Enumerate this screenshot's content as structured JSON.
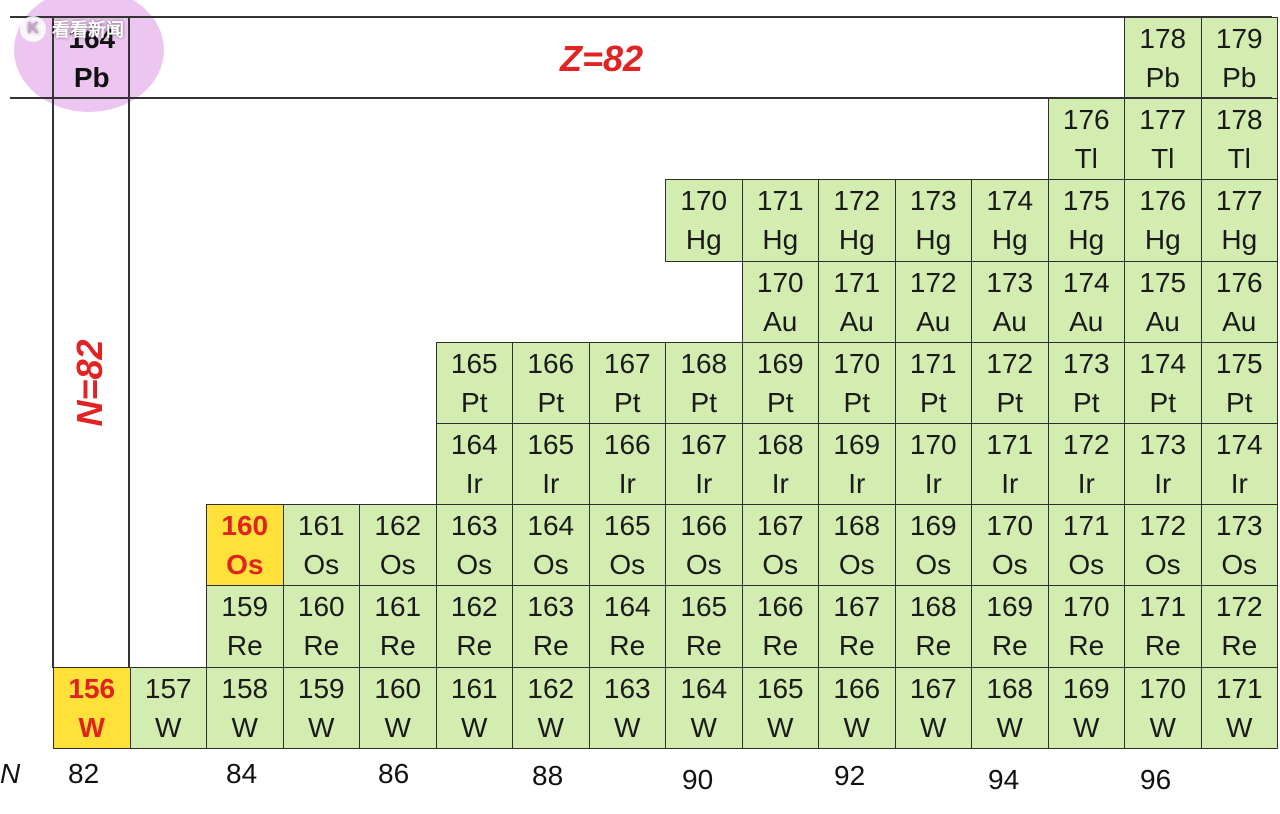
{
  "watermark": {
    "text": "看看新闻",
    "logo_glyph": "K"
  },
  "axis": {
    "n_label": "N",
    "ticks": [
      "82",
      "84",
      "86",
      "88",
      "90",
      "92",
      "94",
      "96"
    ]
  },
  "magic": {
    "z_label": "Z=82",
    "n_label": "N=82"
  },
  "colors": {
    "cell": "#d3ecb0",
    "highlight": "#ffe13a",
    "highlight_text": "#e0231e",
    "magic_text": "#e22323",
    "pb_circle": "#e2a8e8"
  },
  "chart_data": {
    "type": "table",
    "columns_n": [
      82,
      83,
      84,
      85,
      86,
      87,
      88,
      89,
      90,
      91,
      92,
      93,
      94,
      95,
      96,
      97
    ],
    "rows": [
      {
        "element": "Pb",
        "Z": 82,
        "cells": [
          {
            "N": 82,
            "mass": "164",
            "symbol": "Pb",
            "style": "pb"
          },
          {
            "N": 96,
            "mass": "178",
            "symbol": "Pb"
          },
          {
            "N": 97,
            "mass": "179",
            "symbol": "Pb"
          }
        ]
      },
      {
        "element": "Tl",
        "Z": 81,
        "cells": [
          {
            "N": 95,
            "mass": "176",
            "symbol": "Tl"
          },
          {
            "N": 96,
            "mass": "177",
            "symbol": "Tl"
          },
          {
            "N": 97,
            "mass": "178",
            "symbol": "Tl"
          }
        ]
      },
      {
        "element": "Hg",
        "Z": 80,
        "cells": [
          {
            "N": 90,
            "mass": "170",
            "symbol": "Hg"
          },
          {
            "N": 91,
            "mass": "171",
            "symbol": "Hg"
          },
          {
            "N": 92,
            "mass": "172",
            "symbol": "Hg"
          },
          {
            "N": 93,
            "mass": "173",
            "symbol": "Hg"
          },
          {
            "N": 94,
            "mass": "174",
            "symbol": "Hg"
          },
          {
            "N": 95,
            "mass": "175",
            "symbol": "Hg"
          },
          {
            "N": 96,
            "mass": "176",
            "symbol": "Hg"
          },
          {
            "N": 97,
            "mass": "177",
            "symbol": "Hg"
          }
        ]
      },
      {
        "element": "Au",
        "Z": 79,
        "cells": [
          {
            "N": 91,
            "mass": "170",
            "symbol": "Au"
          },
          {
            "N": 92,
            "mass": "171",
            "symbol": "Au"
          },
          {
            "N": 93,
            "mass": "172",
            "symbol": "Au"
          },
          {
            "N": 94,
            "mass": "173",
            "symbol": "Au"
          },
          {
            "N": 95,
            "mass": "174",
            "symbol": "Au"
          },
          {
            "N": 96,
            "mass": "175",
            "symbol": "Au"
          },
          {
            "N": 97,
            "mass": "176",
            "symbol": "Au"
          }
        ]
      },
      {
        "element": "Pt",
        "Z": 78,
        "cells": [
          {
            "N": 87,
            "mass": "165",
            "symbol": "Pt"
          },
          {
            "N": 88,
            "mass": "166",
            "symbol": "Pt"
          },
          {
            "N": 89,
            "mass": "167",
            "symbol": "Pt"
          },
          {
            "N": 90,
            "mass": "168",
            "symbol": "Pt"
          },
          {
            "N": 91,
            "mass": "169",
            "symbol": "Pt"
          },
          {
            "N": 92,
            "mass": "170",
            "symbol": "Pt"
          },
          {
            "N": 93,
            "mass": "171",
            "symbol": "Pt"
          },
          {
            "N": 94,
            "mass": "172",
            "symbol": "Pt"
          },
          {
            "N": 95,
            "mass": "173",
            "symbol": "Pt"
          },
          {
            "N": 96,
            "mass": "174",
            "symbol": "Pt"
          },
          {
            "N": 97,
            "mass": "175",
            "symbol": "Pt"
          }
        ]
      },
      {
        "element": "Ir",
        "Z": 77,
        "cells": [
          {
            "N": 87,
            "mass": "164",
            "symbol": "Ir"
          },
          {
            "N": 88,
            "mass": "165",
            "symbol": "Ir"
          },
          {
            "N": 89,
            "mass": "166",
            "symbol": "Ir"
          },
          {
            "N": 90,
            "mass": "167",
            "symbol": "Ir"
          },
          {
            "N": 91,
            "mass": "168",
            "symbol": "Ir"
          },
          {
            "N": 92,
            "mass": "169",
            "symbol": "Ir"
          },
          {
            "N": 93,
            "mass": "170",
            "symbol": "Ir"
          },
          {
            "N": 94,
            "mass": "171",
            "symbol": "Ir"
          },
          {
            "N": 95,
            "mass": "172",
            "symbol": "Ir"
          },
          {
            "N": 96,
            "mass": "173",
            "symbol": "Ir"
          },
          {
            "N": 97,
            "mass": "174",
            "symbol": "Ir"
          }
        ]
      },
      {
        "element": "Os",
        "Z": 76,
        "cells": [
          {
            "N": 84,
            "mass": "160",
            "symbol": "Os",
            "style": "hl"
          },
          {
            "N": 85,
            "mass": "161",
            "symbol": "Os"
          },
          {
            "N": 86,
            "mass": "162",
            "symbol": "Os"
          },
          {
            "N": 87,
            "mass": "163",
            "symbol": "Os"
          },
          {
            "N": 88,
            "mass": "164",
            "symbol": "Os"
          },
          {
            "N": 89,
            "mass": "165",
            "symbol": "Os"
          },
          {
            "N": 90,
            "mass": "166",
            "symbol": "Os"
          },
          {
            "N": 91,
            "mass": "167",
            "symbol": "Os"
          },
          {
            "N": 92,
            "mass": "168",
            "symbol": "Os"
          },
          {
            "N": 93,
            "mass": "169",
            "symbol": "Os"
          },
          {
            "N": 94,
            "mass": "170",
            "symbol": "Os"
          },
          {
            "N": 95,
            "mass": "171",
            "symbol": "Os"
          },
          {
            "N": 96,
            "mass": "172",
            "symbol": "Os"
          },
          {
            "N": 97,
            "mass": "173",
            "symbol": "Os"
          }
        ]
      },
      {
        "element": "Re",
        "Z": 75,
        "cells": [
          {
            "N": 84,
            "mass": "159",
            "symbol": "Re"
          },
          {
            "N": 85,
            "mass": "160",
            "symbol": "Re"
          },
          {
            "N": 86,
            "mass": "161",
            "symbol": "Re"
          },
          {
            "N": 87,
            "mass": "162",
            "symbol": "Re"
          },
          {
            "N": 88,
            "mass": "163",
            "symbol": "Re"
          },
          {
            "N": 89,
            "mass": "164",
            "symbol": "Re"
          },
          {
            "N": 90,
            "mass": "165",
            "symbol": "Re"
          },
          {
            "N": 91,
            "mass": "166",
            "symbol": "Re"
          },
          {
            "N": 92,
            "mass": "167",
            "symbol": "Re"
          },
          {
            "N": 93,
            "mass": "168",
            "symbol": "Re"
          },
          {
            "N": 94,
            "mass": "169",
            "symbol": "Re"
          },
          {
            "N": 95,
            "mass": "170",
            "symbol": "Re"
          },
          {
            "N": 96,
            "mass": "171",
            "symbol": "Re"
          },
          {
            "N": 97,
            "mass": "172",
            "symbol": "Re"
          }
        ]
      },
      {
        "element": "W",
        "Z": 74,
        "cells": [
          {
            "N": 82,
            "mass": "156",
            "symbol": "W",
            "style": "hl"
          },
          {
            "N": 83,
            "mass": "157",
            "symbol": "W"
          },
          {
            "N": 84,
            "mass": "158",
            "symbol": "W"
          },
          {
            "N": 85,
            "mass": "159",
            "symbol": "W"
          },
          {
            "N": 86,
            "mass": "160",
            "symbol": "W"
          },
          {
            "N": 87,
            "mass": "161",
            "symbol": "W"
          },
          {
            "N": 88,
            "mass": "162",
            "symbol": "W"
          },
          {
            "N": 89,
            "mass": "163",
            "symbol": "W"
          },
          {
            "N": 90,
            "mass": "164",
            "symbol": "W"
          },
          {
            "N": 91,
            "mass": "165",
            "symbol": "W"
          },
          {
            "N": 92,
            "mass": "166",
            "symbol": "W"
          },
          {
            "N": 93,
            "mass": "167",
            "symbol": "W"
          },
          {
            "N": 94,
            "mass": "168",
            "symbol": "W"
          },
          {
            "N": 95,
            "mass": "169",
            "symbol": "W"
          },
          {
            "N": 96,
            "mass": "170",
            "symbol": "W"
          },
          {
            "N": 97,
            "mass": "171",
            "symbol": "W"
          }
        ]
      }
    ]
  }
}
